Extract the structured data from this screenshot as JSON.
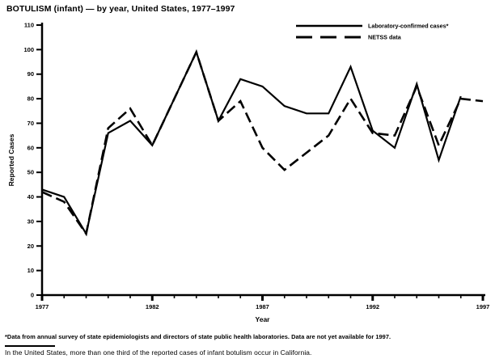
{
  "title": "BOTULISM (infant) — by year, United States, 1977–1997",
  "footnotes": {
    "note1": "*Data from annual survey of state epidemiologists and directors of state public health laboratories. Data are not yet available for 1997.",
    "note2": "In the United States, more than one third of the reported cases of infant botulism occur in California."
  },
  "chart_data": {
    "type": "line",
    "title": "BOTULISM (infant) — by year, United States, 1977–1997",
    "xlabel": "Year",
    "ylabel": "Reported Cases",
    "ylim": [
      0,
      110
    ],
    "xlim": [
      1977,
      1997
    ],
    "y_ticks": [
      0,
      10,
      20,
      30,
      40,
      50,
      60,
      70,
      80,
      90,
      100,
      110
    ],
    "x_major_ticks": [
      1977,
      1982,
      1987,
      1992,
      1997
    ],
    "x_minor_tick_step": 1,
    "grid": false,
    "legend_position": "top-right",
    "line_color": "#000000",
    "x": [
      1977,
      1978,
      1979,
      1980,
      1981,
      1982,
      1983,
      1984,
      1985,
      1986,
      1987,
      1988,
      1989,
      1990,
      1991,
      1992,
      1993,
      1994,
      1995,
      1996,
      1997
    ],
    "series": [
      {
        "name": "Laboratory-confirmed cases*",
        "line_style": "solid",
        "values": [
          43,
          40,
          25,
          66,
          71,
          61,
          80,
          99,
          71,
          88,
          85,
          77,
          74,
          74,
          93,
          67,
          60,
          86,
          55,
          81,
          null
        ]
      },
      {
        "name": "NETSS data",
        "line_style": "dashed",
        "values": [
          42,
          38,
          25,
          68,
          76,
          61,
          80,
          99,
          71,
          79,
          60,
          51,
          58,
          65,
          80,
          66,
          65,
          85,
          61,
          80,
          79
        ]
      }
    ]
  }
}
